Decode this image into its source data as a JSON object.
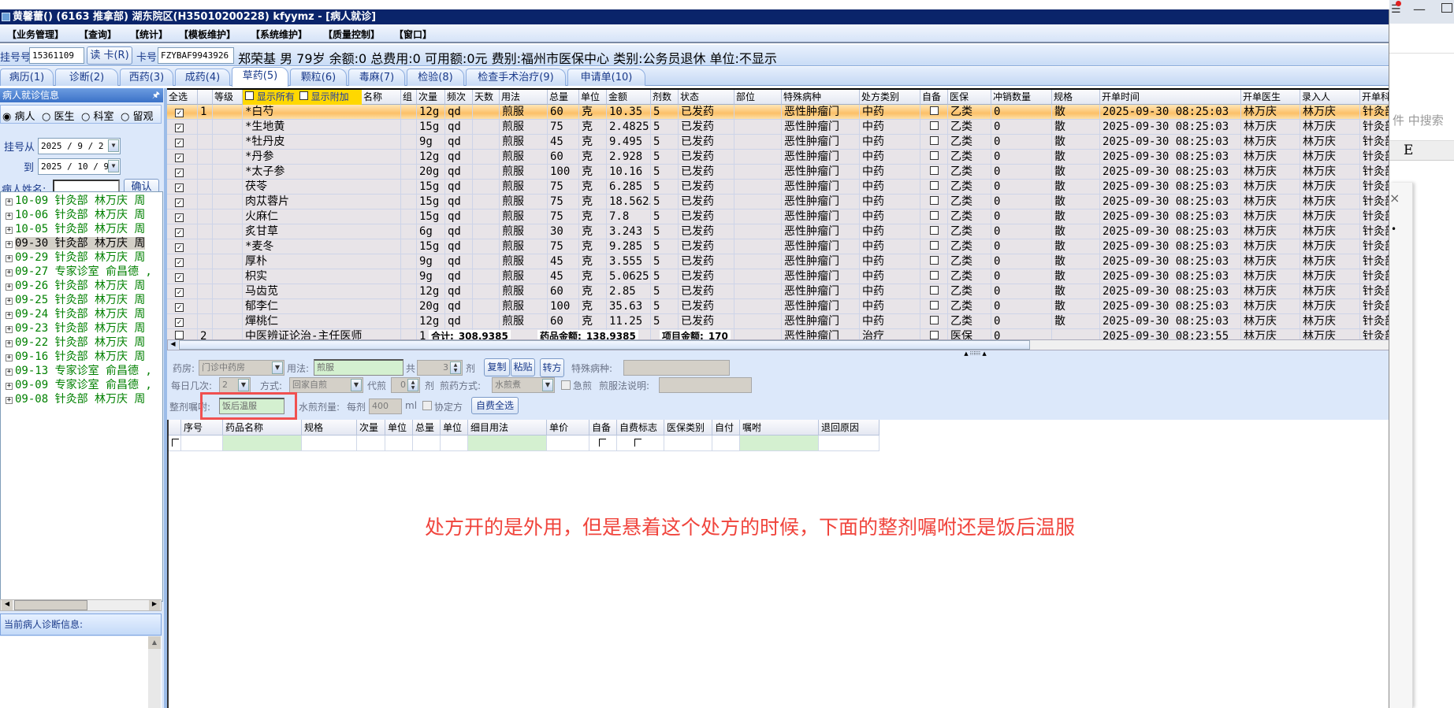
{
  "window": {
    "title": "黄馨蕾() (6163 推拿部) 湖东院区(H35010200228) kfyymz - [病人就诊]"
  },
  "menu": [
    "【业务管理】",
    "【查询】",
    "【统计】",
    "【模板维护】",
    "【系统维护】",
    "【质量控制】",
    "【窗口】"
  ],
  "patient_bar": {
    "reg_label": "挂号号",
    "reg_value": "15361109",
    "read_card_button": "读 卡(R)",
    "card_label": "卡号",
    "card_value": "FZYBAF9943926",
    "summary": "郑荣基 男 79岁 余额:0 总费用:0 可用额:0元 费别:福州市医保中心 类别:公务员退休 单位:不显示"
  },
  "tabs": [
    {
      "label": "病历(1)"
    },
    {
      "label": "诊断(2)"
    },
    {
      "label": "西药(3)"
    },
    {
      "label": "成药(4)"
    },
    {
      "label": "草药(5)",
      "active": true
    },
    {
      "label": "颗粒(6)"
    },
    {
      "label": "毒麻(7)"
    },
    {
      "label": "检验(8)"
    },
    {
      "label": "检查手术治疗(9)"
    },
    {
      "label": "申请单(10)"
    }
  ],
  "sidebar": {
    "title": "病人就诊信息",
    "pin_icon": "pin-icon",
    "radios": [
      {
        "label": "病人",
        "checked": true
      },
      {
        "label": "医生",
        "checked": false
      },
      {
        "label": "科室",
        "checked": false
      },
      {
        "label": "留观",
        "checked": false
      }
    ],
    "from_label": "挂号从",
    "from_value": "2025 / 9 / 2",
    "to_label": "到",
    "to_value": "2025 / 10 / 9",
    "name_label": "病人姓名:",
    "name_value": "",
    "confirm_button": "确认",
    "visits": [
      "10-09 针灸部 林万庆 周",
      "10-06 针灸部 林万庆 周",
      "10-05 针灸部 林万庆 周",
      "09-30 针灸部 林万庆 周",
      "09-29 针灸部 林万庆 周",
      "09-27 专家诊室 俞昌德 ,",
      "09-26 针灸部 林万庆 周",
      "09-25 针灸部 林万庆 周",
      "09-24 针灸部 林万庆 周",
      "09-23 针灸部 林万庆 周",
      "09-22 针灸部 林万庆 周",
      "09-16 针灸部 林万庆 周",
      "09-13 专家诊室 俞昌德 ,",
      "09-09 专家诊室 俞昌德 ,",
      "09-08 针灸部 林万庆 周"
    ],
    "selected_visit": 3,
    "diagnosis_title": "当前病人诊断信息:"
  },
  "prescription_grid": {
    "select_all": "全选",
    "level": "等级",
    "show_all": "显示所有",
    "show_extra": "显示附加",
    "headers": {
      "name": "名称",
      "group": "组",
      "dose": "次量",
      "freq": "频次",
      "days": "天数",
      "usage": "用法",
      "total": "总量",
      "unit": "单位",
      "amount": "金额",
      "doses": "剂数",
      "status": "状态",
      "site": "部位",
      "disease": "特殊病种",
      "rx_type": "处方类别",
      "self": "自备",
      "insurance": "医保",
      "offset_qty": "冲销数量",
      "spec": "规格",
      "time": "开单时间",
      "doctor": "开单医生",
      "entered_by": "录入人",
      "dept": "开单科"
    },
    "rows": [
      {
        "check": true,
        "no": "1",
        "name": "*白芍",
        "dose": "12g",
        "freq": "qd",
        "usage": "煎服",
        "total": "60",
        "unit": "克",
        "amount": "10.35",
        "doses": "5",
        "status": "已发药",
        "disease": "恶性肿瘤门",
        "rx_type": "中药",
        "insurance": "乙类",
        "offset_qty": "0",
        "spec": "散",
        "time": "2025-09-30 08:25:03",
        "doctor": "林万庆",
        "entered_by": "林万庆",
        "dept": "针灸部"
      },
      {
        "check": true,
        "no": "",
        "name": "*生地黄",
        "dose": "15g",
        "freq": "qd",
        "usage": "煎服",
        "total": "75",
        "unit": "克",
        "amount": "2.4825",
        "doses": "5",
        "status": "已发药",
        "disease": "恶性肿瘤门",
        "rx_type": "中药",
        "insurance": "乙类",
        "offset_qty": "0",
        "spec": "散",
        "time": "2025-09-30 08:25:03",
        "doctor": "林万庆",
        "entered_by": "林万庆",
        "dept": "针灸部"
      },
      {
        "check": true,
        "no": "",
        "name": "*牡丹皮",
        "dose": "9g",
        "freq": "qd",
        "usage": "煎服",
        "total": "45",
        "unit": "克",
        "amount": "9.495",
        "doses": "5",
        "status": "已发药",
        "disease": "恶性肿瘤门",
        "rx_type": "中药",
        "insurance": "乙类",
        "offset_qty": "0",
        "spec": "散",
        "time": "2025-09-30 08:25:03",
        "doctor": "林万庆",
        "entered_by": "林万庆",
        "dept": "针灸部"
      },
      {
        "check": true,
        "no": "",
        "name": "*丹参",
        "dose": "12g",
        "freq": "qd",
        "usage": "煎服",
        "total": "60",
        "unit": "克",
        "amount": "2.928",
        "doses": "5",
        "status": "已发药",
        "disease": "恶性肿瘤门",
        "rx_type": "中药",
        "insurance": "乙类",
        "offset_qty": "0",
        "spec": "散",
        "time": "2025-09-30 08:25:03",
        "doctor": "林万庆",
        "entered_by": "林万庆",
        "dept": "针灸部"
      },
      {
        "check": true,
        "no": "",
        "name": "*太子参",
        "dose": "20g",
        "freq": "qd",
        "usage": "煎服",
        "total": "100",
        "unit": "克",
        "amount": "10.16",
        "doses": "5",
        "status": "已发药",
        "disease": "恶性肿瘤门",
        "rx_type": "中药",
        "insurance": "乙类",
        "offset_qty": "0",
        "spec": "散",
        "time": "2025-09-30 08:25:03",
        "doctor": "林万庆",
        "entered_by": "林万庆",
        "dept": "针灸部"
      },
      {
        "check": true,
        "no": "",
        "name": "茯苓",
        "dose": "15g",
        "freq": "qd",
        "usage": "煎服",
        "total": "75",
        "unit": "克",
        "amount": "6.285",
        "doses": "5",
        "status": "已发药",
        "disease": "恶性肿瘤门",
        "rx_type": "中药",
        "insurance": "乙类",
        "offset_qty": "0",
        "spec": "散",
        "time": "2025-09-30 08:25:03",
        "doctor": "林万庆",
        "entered_by": "林万庆",
        "dept": "针灸部"
      },
      {
        "check": true,
        "no": "",
        "name": "肉苁蓉片",
        "dose": "15g",
        "freq": "qd",
        "usage": "煎服",
        "total": "75",
        "unit": "克",
        "amount": "18.5625",
        "doses": "5",
        "status": "已发药",
        "disease": "恶性肿瘤门",
        "rx_type": "中药",
        "insurance": "乙类",
        "offset_qty": "0",
        "spec": "散",
        "time": "2025-09-30 08:25:03",
        "doctor": "林万庆",
        "entered_by": "林万庆",
        "dept": "针灸部"
      },
      {
        "check": true,
        "no": "",
        "name": "火麻仁",
        "dose": "15g",
        "freq": "qd",
        "usage": "煎服",
        "total": "75",
        "unit": "克",
        "amount": "7.8",
        "doses": "5",
        "status": "已发药",
        "disease": "恶性肿瘤门",
        "rx_type": "中药",
        "insurance": "乙类",
        "offset_qty": "0",
        "spec": "散",
        "time": "2025-09-30 08:25:03",
        "doctor": "林万庆",
        "entered_by": "林万庆",
        "dept": "针灸部"
      },
      {
        "check": true,
        "no": "",
        "name": "炙甘草",
        "dose": "6g",
        "freq": "qd",
        "usage": "煎服",
        "total": "30",
        "unit": "克",
        "amount": "3.243",
        "doses": "5",
        "status": "已发药",
        "disease": "恶性肿瘤门",
        "rx_type": "中药",
        "insurance": "乙类",
        "offset_qty": "0",
        "spec": "散",
        "time": "2025-09-30 08:25:03",
        "doctor": "林万庆",
        "entered_by": "林万庆",
        "dept": "针灸部"
      },
      {
        "check": true,
        "no": "",
        "name": "*麦冬",
        "dose": "15g",
        "freq": "qd",
        "usage": "煎服",
        "total": "75",
        "unit": "克",
        "amount": "9.285",
        "doses": "5",
        "status": "已发药",
        "disease": "恶性肿瘤门",
        "rx_type": "中药",
        "insurance": "乙类",
        "offset_qty": "0",
        "spec": "散",
        "time": "2025-09-30 08:25:03",
        "doctor": "林万庆",
        "entered_by": "林万庆",
        "dept": "针灸部"
      },
      {
        "check": true,
        "no": "",
        "name": "厚朴",
        "dose": "9g",
        "freq": "qd",
        "usage": "煎服",
        "total": "45",
        "unit": "克",
        "amount": "3.555",
        "doses": "5",
        "status": "已发药",
        "disease": "恶性肿瘤门",
        "rx_type": "中药",
        "insurance": "乙类",
        "offset_qty": "0",
        "spec": "散",
        "time": "2025-09-30 08:25:03",
        "doctor": "林万庆",
        "entered_by": "林万庆",
        "dept": "针灸部"
      },
      {
        "check": true,
        "no": "",
        "name": "枳实",
        "dose": "9g",
        "freq": "qd",
        "usage": "煎服",
        "total": "45",
        "unit": "克",
        "amount": "5.0625",
        "doses": "5",
        "status": "已发药",
        "disease": "恶性肿瘤门",
        "rx_type": "中药",
        "insurance": "乙类",
        "offset_qty": "0",
        "spec": "散",
        "time": "2025-09-30 08:25:03",
        "doctor": "林万庆",
        "entered_by": "林万庆",
        "dept": "针灸部"
      },
      {
        "check": true,
        "no": "",
        "name": "马齿苋",
        "dose": "12g",
        "freq": "qd",
        "usage": "煎服",
        "total": "60",
        "unit": "克",
        "amount": "2.85",
        "doses": "5",
        "status": "已发药",
        "disease": "恶性肿瘤门",
        "rx_type": "中药",
        "insurance": "乙类",
        "offset_qty": "0",
        "spec": "散",
        "time": "2025-09-30 08:25:03",
        "doctor": "林万庆",
        "entered_by": "林万庆",
        "dept": "针灸部"
      },
      {
        "check": true,
        "no": "",
        "name": "郁李仁",
        "dose": "20g",
        "freq": "qd",
        "usage": "煎服",
        "total": "100",
        "unit": "克",
        "amount": "35.63",
        "doses": "5",
        "status": "已发药",
        "disease": "恶性肿瘤门",
        "rx_type": "中药",
        "insurance": "乙类",
        "offset_qty": "0",
        "spec": "散",
        "time": "2025-09-30 08:25:03",
        "doctor": "林万庆",
        "entered_by": "林万庆",
        "dept": "针灸部"
      },
      {
        "check": true,
        "no": "",
        "name": "燀桃仁",
        "dose": "12g",
        "freq": "qd",
        "usage": "煎服",
        "total": "60",
        "unit": "克",
        "amount": "11.25",
        "doses": "5",
        "status": "已发药",
        "disease": "恶性肿瘤门",
        "rx_type": "中药",
        "insurance": "乙类",
        "offset_qty": "0",
        "spec": "散",
        "time": "2025-09-30 08:25:03",
        "doctor": "林万庆",
        "entered_by": "林万庆",
        "dept": "针灸部"
      },
      {
        "check": false,
        "no": "2",
        "name": "中医辨证论治-主任医师",
        "dose": "1",
        "disease": "恶性肿瘤门",
        "rx_type": "治疗",
        "insurance": "医保",
        "offset_qty": "0",
        "time": "2025-09-30 08:23:55",
        "doctor": "林万庆",
        "entered_by": "林万庆",
        "dept": "针灸部"
      }
    ],
    "selected_row": 0,
    "totals": {
      "total_label": "合计:",
      "total": "308.9385",
      "drug_label": "药品金额:",
      "drug": "138.9385",
      "item_label": "项目金额:",
      "item": "170"
    }
  },
  "form": {
    "pharmacy_label": "药房:",
    "pharmacy": "门诊中药房",
    "usage_label": "用法:",
    "usage": "煎服",
    "total_label": "共",
    "total_doses": "3",
    "doses_unit": "剂",
    "copy_button": "复制",
    "paste_button": "粘贴",
    "transfer_button": "转方",
    "disease_label": "特殊病种:",
    "disease": "",
    "times_label": "每日几次:",
    "times": "2",
    "method_label": "方式:",
    "method": "回家自煎",
    "decoct_label": "代煎",
    "decoct": "0",
    "decoct_unit": "剂",
    "decoct_way_label": "煎药方式:",
    "decoct_way": "水煎煮",
    "urgent_label": "急煎",
    "urgent": false,
    "instructions_label": "煎服法说明:",
    "instructions": "",
    "advice_label": "整剂嘱咐:",
    "advice": "饭后温服",
    "volume_label": "水煎剂量:",
    "per_dose_label": "每剂",
    "volume": "400",
    "volume_unit": "ml",
    "agreement_label": "协定方",
    "agreement": false,
    "self_pay_all_button": "自费全选",
    "highlight_color": "#f05050"
  },
  "detail_grid": {
    "headers": [
      "序号",
      "药品名称",
      "规格",
      "次量",
      "单位",
      "总量",
      "单位",
      "细目用法",
      "单价",
      "自备",
      "自费标志",
      "医保类别",
      "自付",
      "嘱咐",
      "退回原因"
    ]
  },
  "annotation": "处方开的是外用，但是悬着这个处方的时候，下面的整剂嘱咐还是饭后温服",
  "background_app": {
    "search_hint": "件 中搜索",
    "column": "E"
  }
}
